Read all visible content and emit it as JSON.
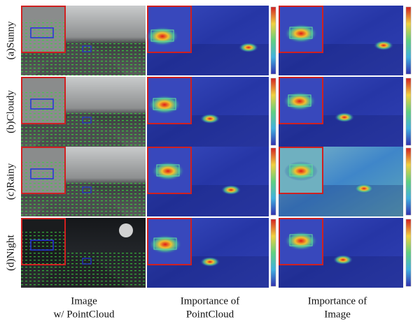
{
  "row_labels": [
    "(a)Sunny",
    "(b)Cloudy",
    "(c)Rainy",
    "(d)Night"
  ],
  "column_labels": [
    {
      "lines": [
        "Image",
        "w/ PointCloud"
      ]
    },
    {
      "lines": [
        "Importance of",
        "PointCloud"
      ]
    },
    {
      "lines": [
        "Importance of",
        "Image"
      ]
    }
  ]
}
